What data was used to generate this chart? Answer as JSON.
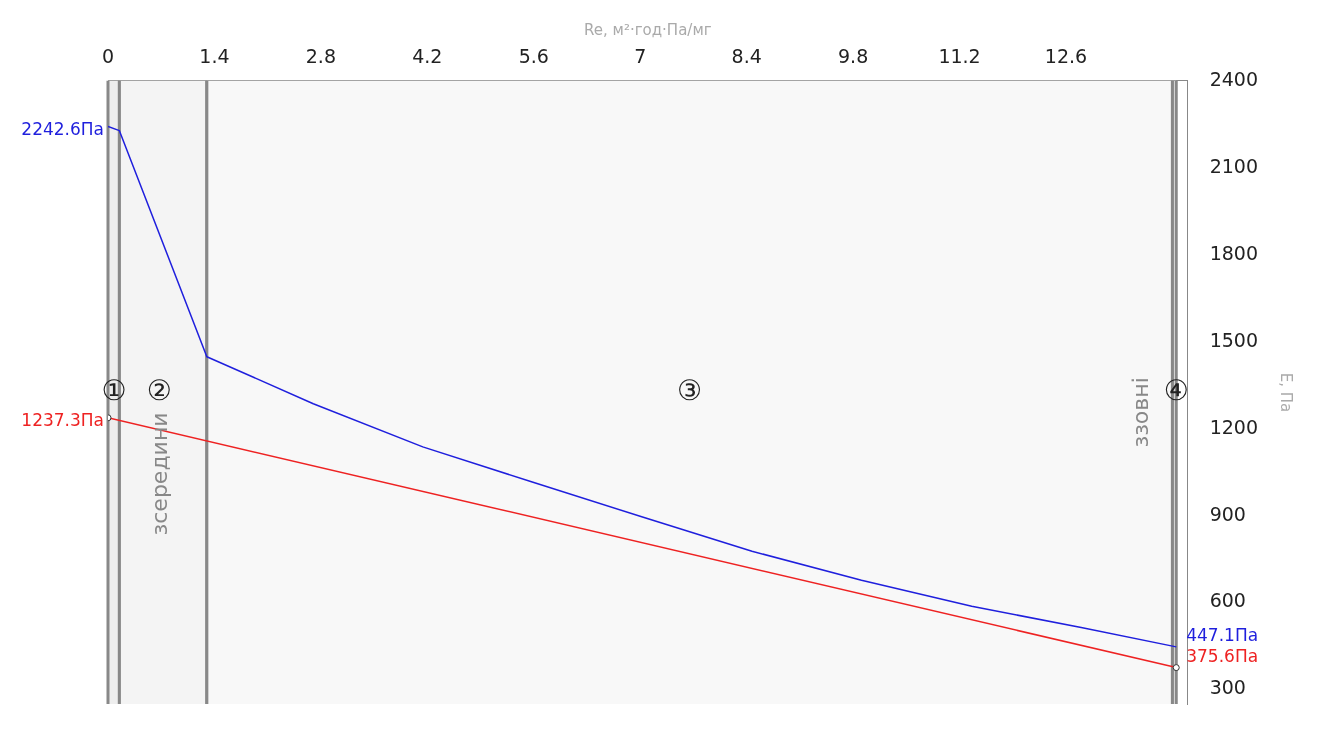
{
  "chart_data": {
    "type": "line",
    "xlabel": "Re, м²·год·Па/мг",
    "ylabel": "E, Па",
    "xlim": [
      0,
      14.2
    ],
    "xticks": [
      0,
      1.4,
      2.8,
      4.2,
      5.6,
      7,
      8.4,
      9.8,
      11.2,
      12.6
    ],
    "ylim": [
      250,
      2400
    ],
    "yticks": [
      300,
      600,
      900,
      1200,
      1500,
      1800,
      2100,
      2400
    ],
    "series": [
      {
        "color": "#1f1fdd",
        "x": [
          0,
          0.15,
          1.3,
          2.7,
          4.14,
          5.58,
          7.03,
          8.47,
          9.91,
          11.36,
          12.8,
          14.05
        ],
        "values": [
          2242.6,
          2228,
          1448,
          1286,
          1137,
          1016,
          895,
          777,
          677,
          587,
          514,
          447.1
        ],
        "value_labels": [
          "2242.6Па",
          null,
          null,
          null,
          null,
          null,
          null,
          null,
          null,
          null,
          null,
          "447.1Па"
        ]
      },
      {
        "color": "#ee2222",
        "marker": "circle",
        "x": [
          0,
          14.05
        ],
        "values": [
          1237.3,
          375.6
        ],
        "value_labels": [
          "1237.3Па",
          "375.6Па"
        ]
      }
    ],
    "bands": [
      {
        "axis": "x",
        "from": 0,
        "to": 0.15,
        "label": "①",
        "color": "#eeeeee"
      },
      {
        "axis": "x",
        "from": 0.15,
        "to": 1.3,
        "label": "②",
        "color": "#f4f4f4"
      },
      {
        "axis": "x",
        "from": 1.3,
        "to": 14.0,
        "label": "③",
        "color": "#f8f8f8"
      },
      {
        "axis": "x",
        "from": 14.0,
        "to": 14.05,
        "label": "④",
        "color": "#eeeeee"
      }
    ],
    "annotations": [
      "зсередини",
      "ззовні"
    ],
    "grid": false,
    "legend": false
  }
}
